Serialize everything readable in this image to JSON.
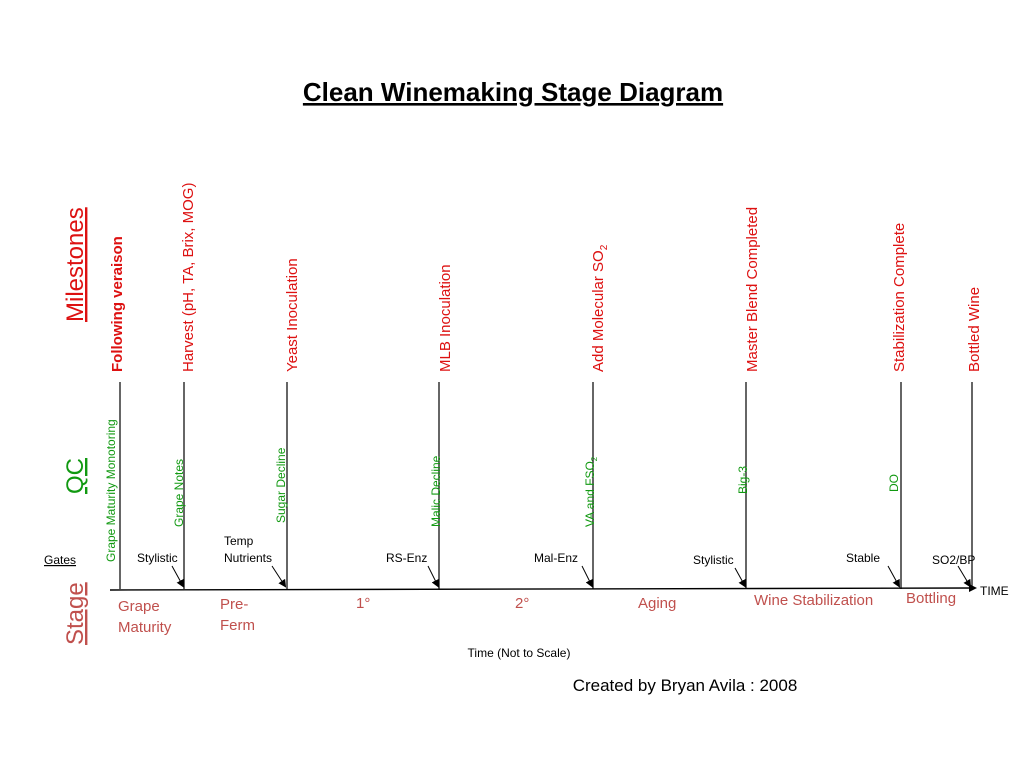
{
  "title": "Clean Winemaking Stage Diagram",
  "sections": {
    "milestones": "Milestones",
    "qc": "QC",
    "gates": "Gates",
    "stage": "Stage"
  },
  "axis": {
    "time_label": "TIME",
    "caption": "Time (Not to Scale)"
  },
  "credit": "Created by Bryan Avila : 2008",
  "milestones": [
    {
      "label": "Following veraison",
      "bold": true
    },
    {
      "label": "Harvest (pH, TA, Brix, MOG)"
    },
    {
      "label": "Yeast Inoculation"
    },
    {
      "label": "MLB Inoculation"
    },
    {
      "label": "Add Molecular SO",
      "sub": "2"
    },
    {
      "label": "Master Blend Completed"
    },
    {
      "label": "Stabilization Complete"
    },
    {
      "label": "Bottled Wine"
    }
  ],
  "qc": [
    {
      "label": "Grape Maturity Monotoring"
    },
    {
      "label": "Grape Notes"
    },
    {
      "label": "Sugar Decline"
    },
    {
      "label": "Malic Decline"
    },
    {
      "label": "VA and FSO",
      "sub": "2"
    },
    {
      "label": "Big-3"
    },
    {
      "label": "DO"
    }
  ],
  "gates": [
    {
      "label": "Stylistic"
    },
    {
      "label": "Temp"
    },
    {
      "label": "Nutrients"
    },
    {
      "label": "RS-Enz"
    },
    {
      "label": "Mal-Enz"
    },
    {
      "label": "Stylistic"
    },
    {
      "label": "Stable"
    },
    {
      "label": "SO2/BP"
    }
  ],
  "stages": [
    {
      "label": "Grape"
    },
    {
      "label": "Maturity"
    },
    {
      "label": "Pre-"
    },
    {
      "label": "Ferm"
    },
    {
      "label": "1°"
    },
    {
      "label": "2°"
    },
    {
      "label": "Aging"
    },
    {
      "label": "Wine Stabilization"
    },
    {
      "label": "Bottling"
    }
  ]
}
